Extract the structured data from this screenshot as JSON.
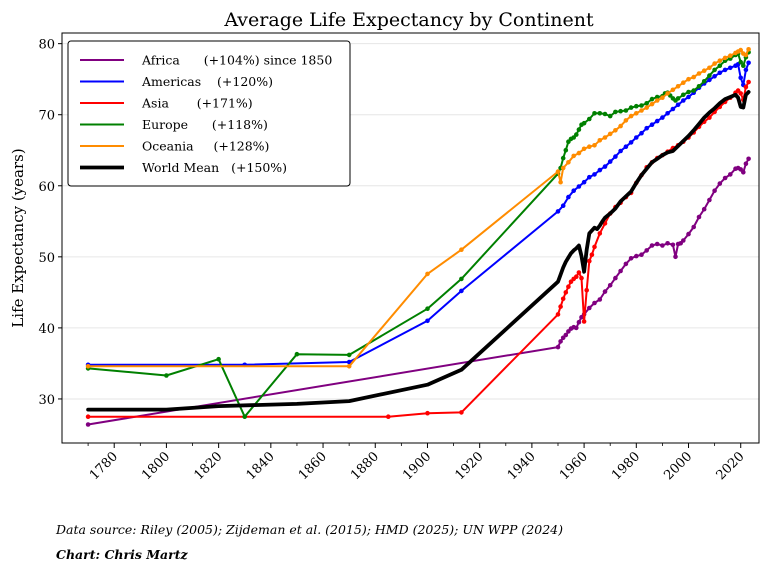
{
  "chart_data": {
    "type": "line",
    "title": "Average Life Expectancy by Continent",
    "xlabel": "",
    "ylabel": "Life Expectancy (years)",
    "xlim": [
      1760,
      2027
    ],
    "ylim": [
      23.8,
      81.5
    ],
    "xticks": [
      1780,
      1800,
      1820,
      1840,
      1860,
      1880,
      1900,
      1920,
      1940,
      1960,
      1980,
      2000,
      2020
    ],
    "xticks_minor": [
      1770,
      1790,
      1810,
      1830,
      1850,
      1870,
      1890,
      1910,
      1930,
      1950,
      1970,
      1990,
      2010
    ],
    "yticks": [
      30,
      40,
      50,
      60,
      70,
      80
    ],
    "grid": "horizontal",
    "legend_position": "top-left",
    "series": [
      {
        "name": "Africa",
        "legend_label": "Africa      (+104%) since 1850",
        "color": "#800080",
        "width": 2,
        "markers": true,
        "x": [
          1770,
          1950,
          1951,
          1952,
          1953,
          1954,
          1955,
          1956,
          1957,
          1958,
          1959,
          1960,
          1962,
          1964,
          1966,
          1968,
          1970,
          1972,
          1974,
          1976,
          1978,
          1980,
          1982,
          1984,
          1986,
          1988,
          1990,
          1992,
          1994,
          1995,
          1996,
          1997,
          1998,
          2000,
          2002,
          2004,
          2006,
          2008,
          2010,
          2012,
          2014,
          2016,
          2018,
          2019,
          2020,
          2021,
          2022,
          2023
        ],
        "y": [
          26.4,
          37.3,
          38.1,
          38.6,
          39.0,
          39.5,
          39.9,
          40.1,
          40.0,
          40.8,
          41.5,
          41.9,
          42.8,
          43.5,
          44.0,
          45.1,
          46.0,
          47.0,
          48.0,
          49.0,
          49.8,
          50.1,
          50.3,
          50.9,
          51.6,
          51.8,
          51.6,
          51.9,
          51.7,
          50.0,
          51.8,
          51.9,
          52.3,
          53.2,
          54.2,
          55.6,
          56.7,
          58.0,
          59.3,
          60.3,
          61.1,
          61.6,
          62.4,
          62.5,
          62.3,
          61.9,
          63.1,
          63.8
        ]
      },
      {
        "name": "Americas",
        "legend_label": "Americas    (+120%)",
        "color": "#0000ff",
        "width": 2,
        "markers": true,
        "x": [
          1770,
          1830,
          1870,
          1900,
          1913,
          1950,
          1952,
          1954,
          1956,
          1958,
          1960,
          1962,
          1964,
          1966,
          1968,
          1970,
          1972,
          1974,
          1976,
          1978,
          1980,
          1982,
          1984,
          1986,
          1988,
          1990,
          1992,
          1994,
          1996,
          1998,
          2000,
          2002,
          2004,
          2006,
          2008,
          2010,
          2012,
          2014,
          2016,
          2018,
          2019,
          2020,
          2021,
          2022,
          2023
        ],
        "y": [
          34.8,
          34.8,
          35.2,
          41.0,
          45.2,
          56.4,
          57.2,
          58.4,
          59.3,
          59.9,
          60.5,
          61.2,
          61.6,
          62.2,
          62.7,
          63.4,
          64.1,
          64.9,
          65.5,
          66.1,
          66.8,
          67.4,
          68.1,
          68.6,
          69.1,
          69.6,
          70.2,
          70.8,
          71.4,
          72.0,
          72.5,
          73.1,
          73.8,
          74.4,
          74.9,
          75.4,
          75.9,
          76.3,
          76.6,
          76.9,
          77.1,
          75.2,
          74.2,
          76.3,
          77.3
        ]
      },
      {
        "name": "Asia",
        "legend_label": "Asia       (+171%)",
        "color": "#ff0000",
        "width": 2,
        "markers": true,
        "x": [
          1770,
          1885,
          1900,
          1913,
          1950,
          1951,
          1952,
          1953,
          1954,
          1955,
          1956,
          1957,
          1958,
          1959,
          1960,
          1961,
          1962,
          1963,
          1964,
          1966,
          1968,
          1970,
          1972,
          1974,
          1976,
          1978,
          1980,
          1982,
          1984,
          1986,
          1988,
          1990,
          1992,
          1994,
          1996,
          1998,
          2000,
          2002,
          2004,
          2006,
          2008,
          2010,
          2012,
          2014,
          2016,
          2018,
          2019,
          2020,
          2021,
          2022,
          2023
        ],
        "y": [
          27.5,
          27.5,
          28.0,
          28.1,
          41.9,
          43.0,
          44.1,
          45.0,
          45.8,
          46.5,
          46.9,
          47.2,
          47.8,
          47.0,
          40.9,
          45.3,
          49.4,
          50.3,
          51.4,
          53.3,
          54.7,
          56.1,
          57.0,
          57.6,
          58.4,
          59.0,
          60.4,
          61.5,
          62.6,
          63.3,
          63.9,
          64.3,
          64.8,
          65.3,
          65.7,
          66.2,
          66.8,
          67.5,
          68.3,
          69.0,
          69.6,
          70.4,
          71.1,
          71.8,
          72.4,
          73.1,
          73.4,
          73.0,
          72.1,
          73.9,
          74.6
        ]
      },
      {
        "name": "Europe",
        "legend_label": "Europe      (+118%)",
        "color": "#008000",
        "width": 2,
        "markers": true,
        "x": [
          1770,
          1800,
          1820,
          1830,
          1850,
          1870,
          1900,
          1913,
          1950,
          1951,
          1952,
          1953,
          1954,
          1955,
          1956,
          1957,
          1958,
          1959,
          1960,
          1962,
          1964,
          1966,
          1968,
          1970,
          1972,
          1974,
          1976,
          1978,
          1980,
          1982,
          1984,
          1986,
          1988,
          1990,
          1991,
          1992,
          1993,
          1994,
          1995,
          1996,
          1998,
          2000,
          2002,
          2004,
          2006,
          2008,
          2010,
          2012,
          2014,
          2016,
          2018,
          2019,
          2020,
          2021,
          2022,
          2023
        ],
        "y": [
          34.3,
          33.3,
          35.6,
          27.5,
          36.3,
          36.2,
          42.7,
          46.9,
          61.7,
          62.5,
          63.9,
          65.0,
          66.2,
          66.6,
          66.8,
          67.2,
          67.9,
          68.6,
          68.8,
          69.4,
          70.2,
          70.2,
          70.1,
          69.8,
          70.4,
          70.5,
          70.6,
          71.0,
          71.2,
          71.3,
          71.6,
          72.2,
          72.5,
          72.6,
          73.0,
          73.1,
          72.7,
          72.3,
          72.0,
          72.3,
          72.8,
          73.2,
          73.4,
          74.0,
          74.7,
          75.5,
          76.3,
          76.9,
          77.6,
          77.9,
          78.4,
          78.6,
          77.4,
          76.9,
          78.1,
          78.8
        ]
      },
      {
        "name": "Oceania",
        "legend_label": "Oceania     (+128%)",
        "color": "#ff8c00",
        "width": 2,
        "markers": true,
        "x": [
          1770,
          1870,
          1900,
          1913,
          1950,
          1951,
          1952,
          1954,
          1956,
          1958,
          1960,
          1962,
          1964,
          1966,
          1968,
          1970,
          1972,
          1974,
          1976,
          1978,
          1980,
          1982,
          1984,
          1986,
          1988,
          1990,
          1992,
          1994,
          1996,
          1998,
          2000,
          2002,
          2004,
          2006,
          2008,
          2010,
          2012,
          2014,
          2016,
          2018,
          2019,
          2020,
          2021,
          2022,
          2023
        ],
        "y": [
          34.6,
          34.6,
          47.6,
          51.0,
          62.0,
          60.5,
          62.5,
          63.3,
          64.2,
          64.6,
          65.2,
          65.5,
          65.7,
          66.4,
          66.8,
          67.3,
          67.8,
          68.4,
          69.2,
          69.8,
          70.2,
          70.6,
          71.0,
          71.5,
          72.0,
          72.4,
          73.0,
          73.5,
          74.0,
          74.5,
          75.0,
          75.3,
          75.8,
          76.2,
          76.6,
          77.2,
          77.6,
          78.0,
          78.3,
          78.7,
          78.9,
          79.1,
          78.6,
          78.4,
          79.2
        ]
      },
      {
        "name": "World Mean",
        "legend_label": "World Mean   (+150%)",
        "color": "#000000",
        "width": 3.8,
        "markers": false,
        "x": [
          1770,
          1800,
          1820,
          1850,
          1870,
          1900,
          1913,
          1950,
          1951,
          1952,
          1953,
          1954,
          1955,
          1956,
          1957,
          1958,
          1959,
          1960,
          1961,
          1962,
          1963,
          1964,
          1965,
          1966,
          1967,
          1968,
          1969,
          1970,
          1972,
          1974,
          1976,
          1978,
          1980,
          1982,
          1984,
          1986,
          1988,
          1990,
          1992,
          1994,
          1996,
          1998,
          2000,
          2002,
          2004,
          2006,
          2008,
          2010,
          2012,
          2014,
          2016,
          2018,
          2019,
          2020,
          2021,
          2022,
          2023
        ],
        "y": [
          28.5,
          28.5,
          29.0,
          29.3,
          29.7,
          32.0,
          34.1,
          46.5,
          47.5,
          48.5,
          49.3,
          49.9,
          50.5,
          50.9,
          51.2,
          51.6,
          50.1,
          47.9,
          51.0,
          53.3,
          53.7,
          54.1,
          53.9,
          54.4,
          55.0,
          55.5,
          55.8,
          56.1,
          56.8,
          57.8,
          58.5,
          59.2,
          60.4,
          61.5,
          62.4,
          63.3,
          63.8,
          64.3,
          64.7,
          64.9,
          65.6,
          66.3,
          67.0,
          67.8,
          68.7,
          69.6,
          70.3,
          70.9,
          71.6,
          72.2,
          72.5,
          72.8,
          72.4,
          71.1,
          71.0,
          72.8,
          73.2
        ]
      }
    ]
  },
  "notes": {
    "source": "Data source: Riley (2005); Zijdeman et al. (2015); HMD (2025); UN WPP (2024)",
    "credit": "Chart: Chris Martz"
  }
}
